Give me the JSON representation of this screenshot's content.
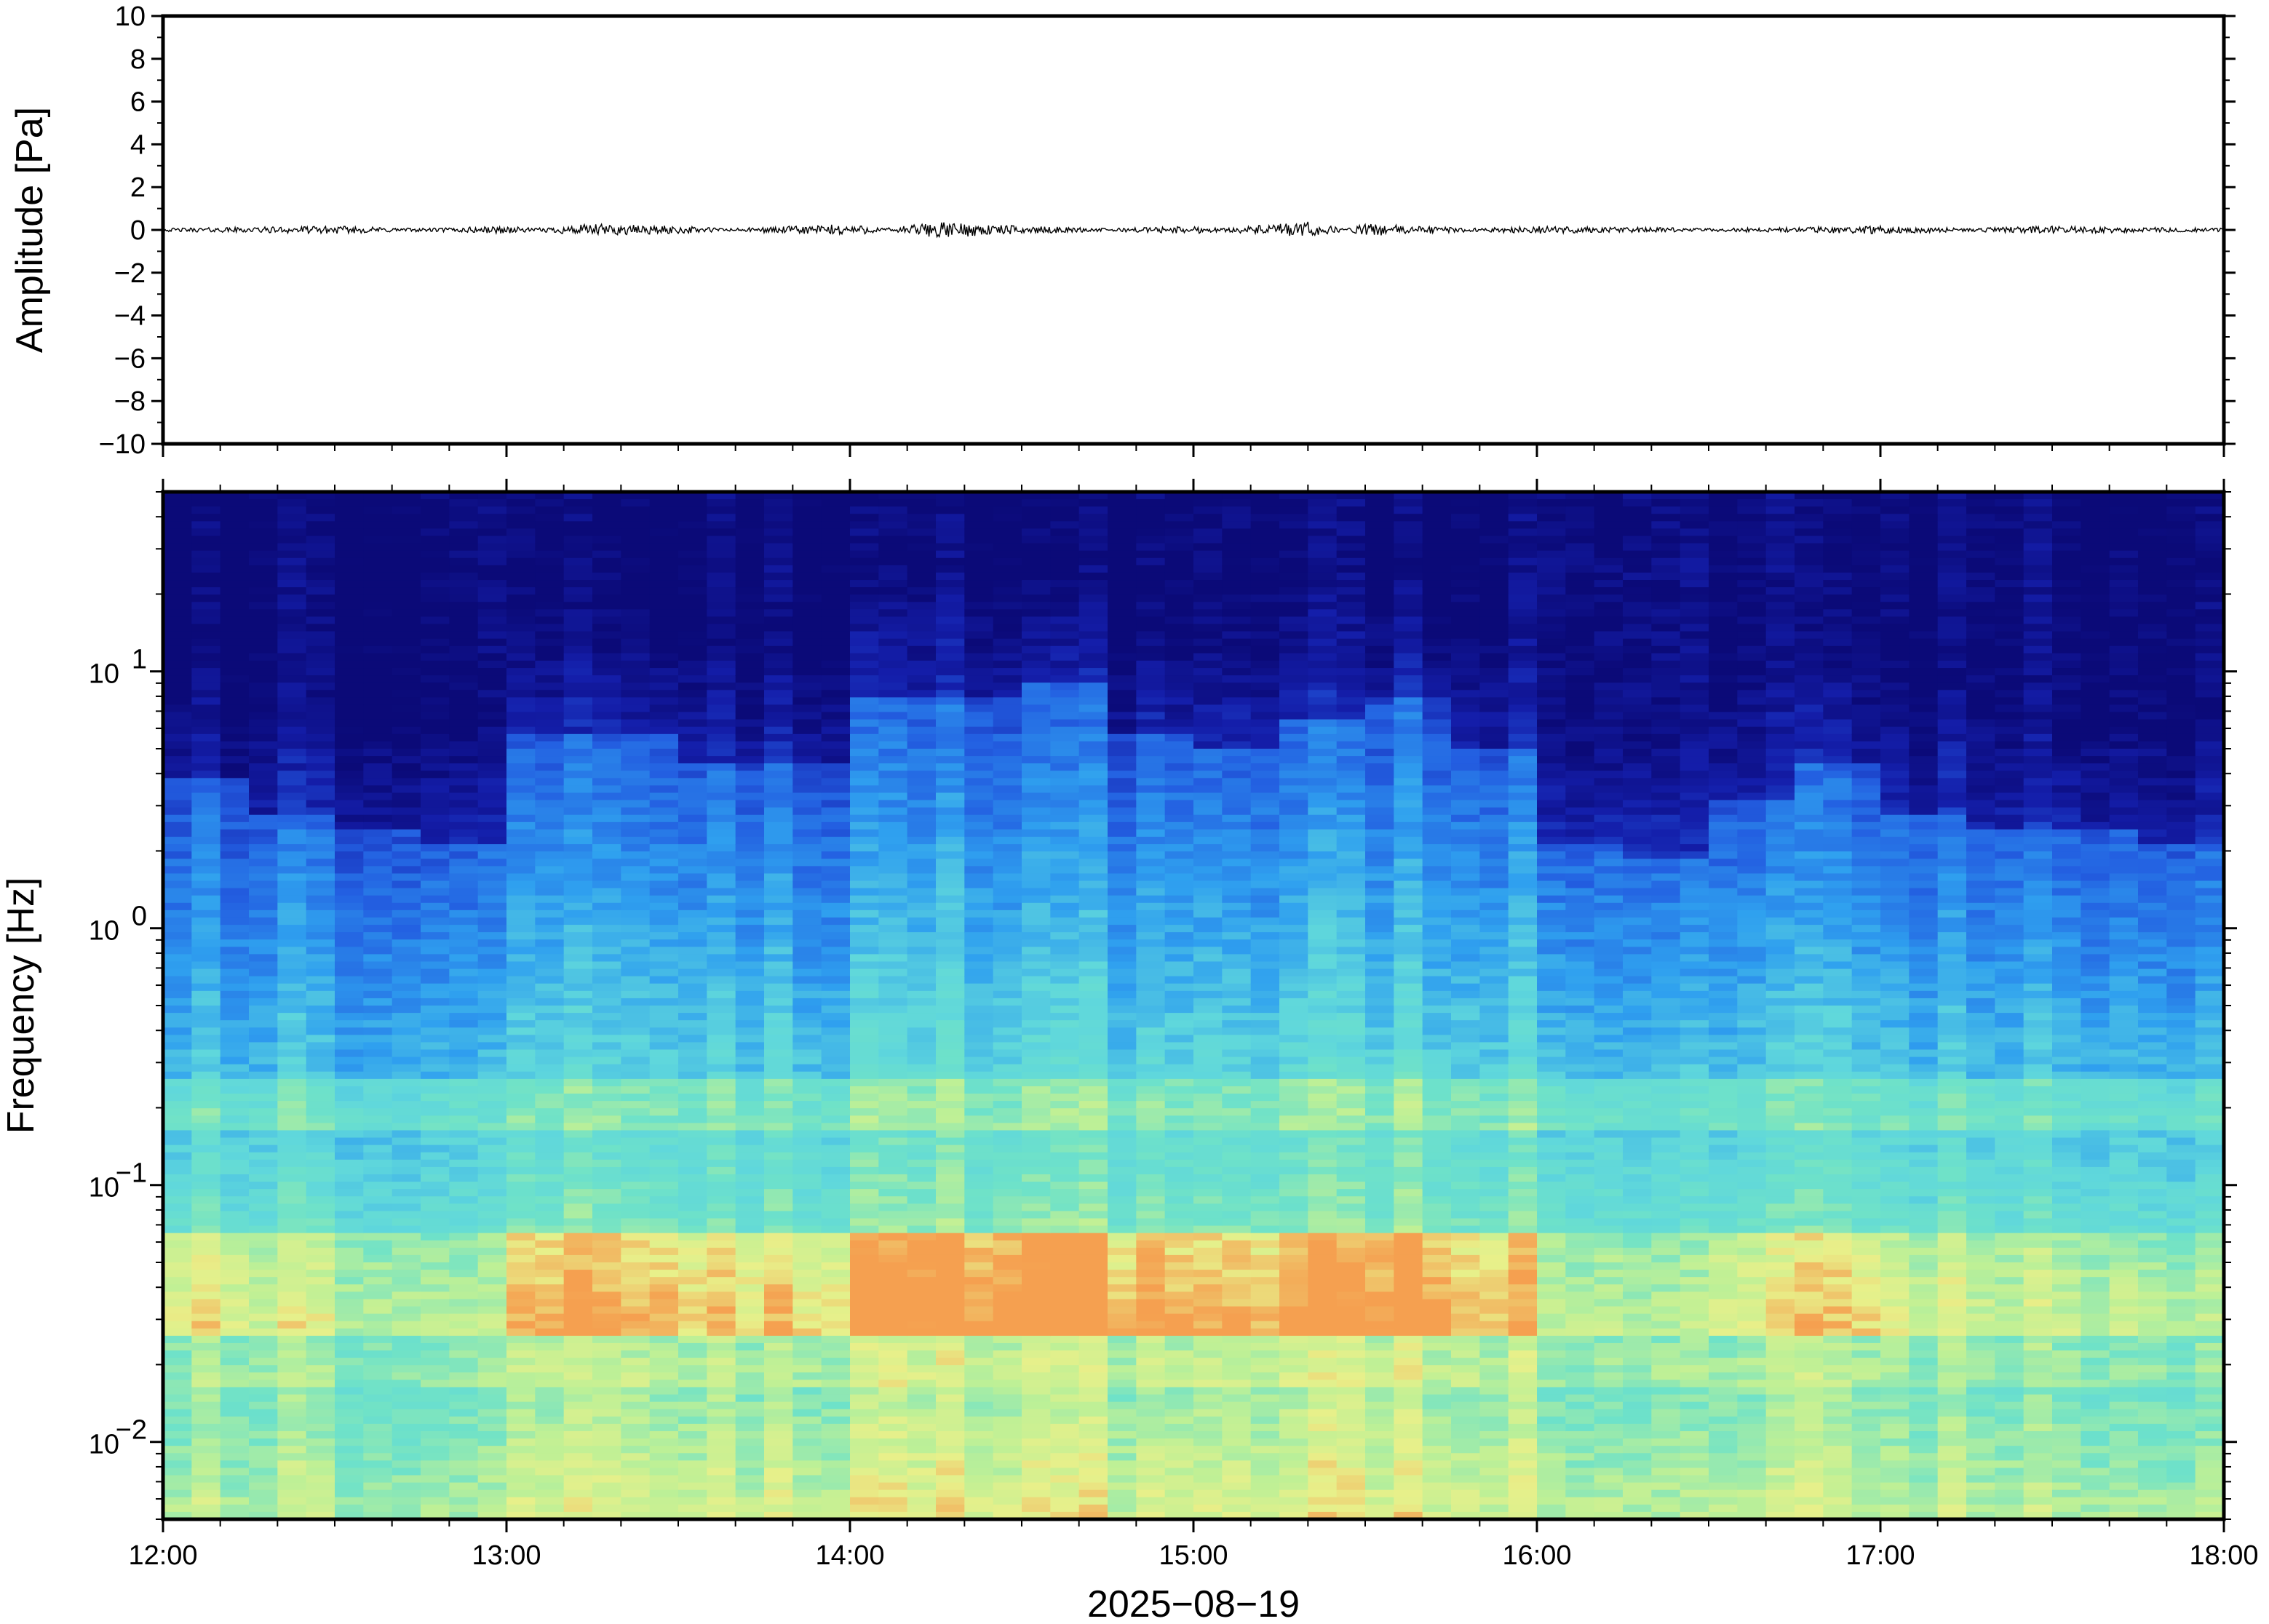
{
  "chart_data": [
    {
      "type": "line",
      "title": "",
      "ylabel": "Amplitude [Pa]",
      "ylim": [
        -10,
        10
      ],
      "yticks": [
        10,
        8,
        6,
        4,
        2,
        0,
        -2,
        -4,
        -6,
        -8,
        -10
      ],
      "ytick_labels": [
        "10",
        "8",
        "6",
        "4",
        "2",
        "0",
        "−2",
        "−4",
        "−6",
        "−8",
        "−10"
      ],
      "xlim": [
        "12:00",
        "18:00"
      ],
      "series": [
        {
          "x": [
            "12:00",
            "12:30",
            "13:00",
            "13:15",
            "13:30",
            "14:00",
            "14:15",
            "14:30",
            "15:00",
            "15:20",
            "15:30",
            "16:00",
            "16:30",
            "17:00",
            "17:30",
            "18:00"
          ],
          "values": [
            0.0,
            0.1,
            -0.1,
            0.2,
            0.1,
            -0.2,
            0.3,
            0.1,
            -0.1,
            0.3,
            -0.2,
            0.1,
            0.0,
            -0.1,
            0.1,
            0.0
          ]
        }
      ],
      "grid": false
    },
    {
      "type": "heatmap",
      "title": "",
      "ylabel": "Frequency [Hz]",
      "xlabel": "2025−08−19",
      "yscale": "log",
      "ylim": [
        0.005,
        50
      ],
      "ytick_labels": [
        {
          "base": "10",
          "exp": "1",
          "value": 10
        },
        {
          "base": "10",
          "exp": "0",
          "value": 1
        },
        {
          "base": "10",
          "exp": "−1",
          "value": 0.1
        },
        {
          "base": "10",
          "exp": "−2",
          "value": 0.01
        }
      ],
      "x_ticks": [
        "12:00",
        "13:00",
        "14:00",
        "15:00",
        "16:00",
        "17:00",
        "18:00"
      ],
      "xlim": [
        "12:00",
        "18:00"
      ],
      "colormap": "jet",
      "colors": {
        "low": "#0b0a78",
        "mid_low": "#2f9fef",
        "mid": "#6fe2c8",
        "mid_high": "#e8f08a",
        "high": "#f5a050"
      },
      "activity": [
        {
          "hour": "12:00",
          "level": 0.5
        },
        {
          "hour": "12:15",
          "level": 0.4
        },
        {
          "hour": "12:30",
          "level": 0.35
        },
        {
          "hour": "12:45",
          "level": 0.3
        },
        {
          "hour": "13:00",
          "level": 0.65
        },
        {
          "hour": "13:15",
          "level": 0.65
        },
        {
          "hour": "13:30",
          "level": 0.55
        },
        {
          "hour": "13:45",
          "level": 0.55
        },
        {
          "hour": "14:00",
          "level": 0.75
        },
        {
          "hour": "14:15",
          "level": 0.75
        },
        {
          "hour": "14:30",
          "level": 0.8
        },
        {
          "hour": "14:45",
          "level": 0.65
        },
        {
          "hour": "15:00",
          "level": 0.6
        },
        {
          "hour": "15:15",
          "level": 0.7
        },
        {
          "hour": "15:30",
          "level": 0.75
        },
        {
          "hour": "15:45",
          "level": 0.6
        },
        {
          "hour": "16:00",
          "level": 0.3
        },
        {
          "hour": "16:15",
          "level": 0.25
        },
        {
          "hour": "16:30",
          "level": 0.45
        },
        {
          "hour": "16:45",
          "level": 0.55
        },
        {
          "hour": "17:00",
          "level": 0.4
        },
        {
          "hour": "17:15",
          "level": 0.35
        },
        {
          "hour": "17:30",
          "level": 0.35
        },
        {
          "hour": "17:45",
          "level": 0.3
        }
      ],
      "grid": false
    }
  ]
}
